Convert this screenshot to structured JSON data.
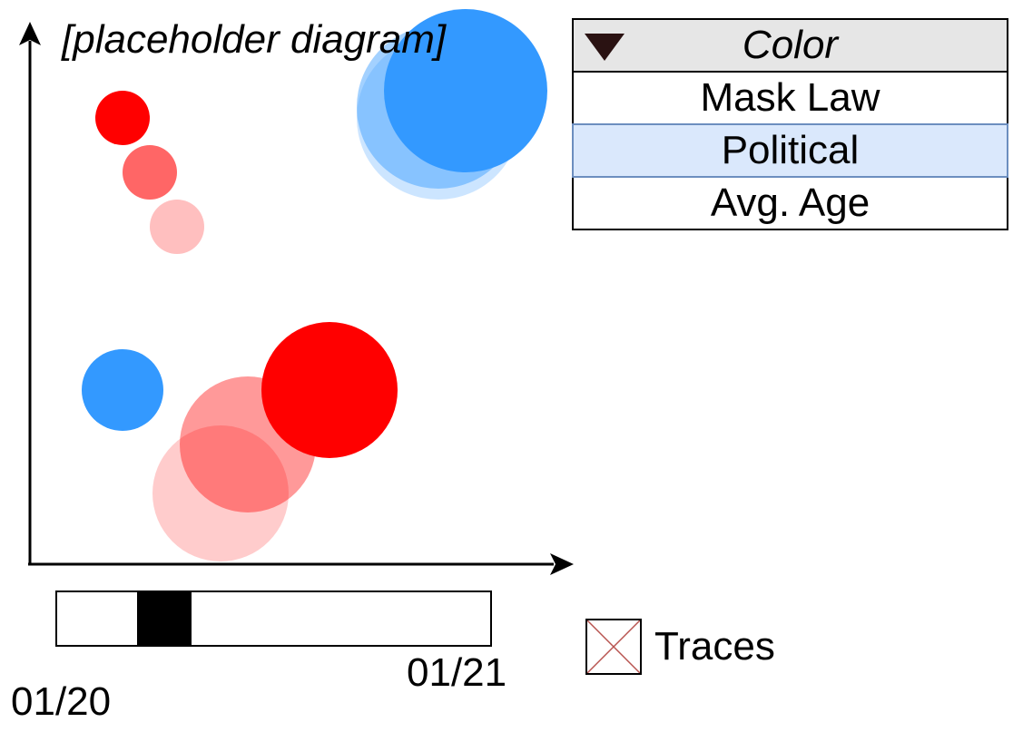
{
  "title": "[placeholder diagram]",
  "colors": {
    "red": "#ff0000",
    "blue": "#3399ff",
    "axis": "#000000"
  },
  "chart_data": {
    "type": "scatter",
    "title": "[placeholder diagram]",
    "xlabel": "",
    "ylabel": "",
    "xlim": [
      0,
      100
    ],
    "ylim": [
      0,
      100
    ],
    "grid": false,
    "points": [
      {
        "x": 35,
        "y": 13,
        "r": 12.5,
        "color": "#ff0000",
        "opacity": 0.2
      },
      {
        "x": 40,
        "y": 22,
        "r": 12.5,
        "color": "#ff0000",
        "opacity": 0.4
      },
      {
        "x": 55,
        "y": 32,
        "r": 12.5,
        "color": "#ff0000",
        "opacity": 1.0
      },
      {
        "x": 17,
        "y": 82,
        "r": 5,
        "color": "#ff0000",
        "opacity": 1.0
      },
      {
        "x": 22,
        "y": 72,
        "r": 5,
        "color": "#ff0000",
        "opacity": 0.6
      },
      {
        "x": 27,
        "y": 62,
        "r": 5,
        "color": "#ff0000",
        "opacity": 0.25
      },
      {
        "x": 17,
        "y": 32,
        "r": 7.5,
        "color": "#3399ff",
        "opacity": 1.0
      },
      {
        "x": 75,
        "y": 82,
        "r": 15,
        "color": "#3399ff",
        "opacity": 0.25
      },
      {
        "x": 75,
        "y": 84,
        "r": 15,
        "color": "#3399ff",
        "opacity": 0.45
      },
      {
        "x": 80,
        "y": 87,
        "r": 15,
        "color": "#3399ff",
        "opacity": 1.0
      }
    ]
  },
  "color_dropdown": {
    "header": "Color",
    "options": [
      "Mask Law",
      "Political",
      "Avg. Age"
    ],
    "selected": "Political"
  },
  "time_slider": {
    "start_label": "01/20",
    "end_label": "01/21",
    "window_start": 0.185,
    "window_end": 0.31
  },
  "traces": {
    "label": "Traces",
    "checked": false
  }
}
